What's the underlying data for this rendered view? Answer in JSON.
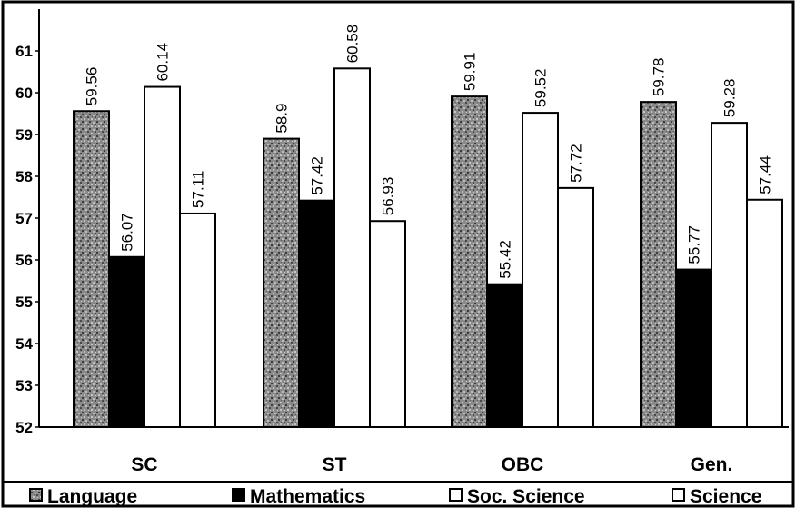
{
  "chart_data": {
    "type": "bar",
    "categories": [
      "SC",
      "ST",
      "OBC",
      "Gen."
    ],
    "series": [
      {
        "name": "Language",
        "values": [
          59.56,
          58.9,
          59.91,
          59.78
        ],
        "color": "#8a8a8a",
        "pattern": "speckled"
      },
      {
        "name": "Mathematics",
        "values": [
          56.07,
          57.42,
          55.42,
          55.77
        ],
        "color": "#000000",
        "pattern": "solid"
      },
      {
        "name": "Soc. Science",
        "values": [
          60.14,
          60.58,
          59.52,
          59.28
        ],
        "color": "#ffffff",
        "pattern": "none"
      },
      {
        "name": "Science",
        "values": [
          57.11,
          56.93,
          57.72,
          57.44
        ],
        "color": "#ffffff",
        "pattern": "none"
      }
    ],
    "y_ticks": [
      "52",
      "53",
      "54",
      "55",
      "56",
      "57",
      "58",
      "59",
      "60",
      "61"
    ],
    "data_labels": [
      [
        "59.56",
        "58.9",
        "59.91",
        "59.78"
      ],
      [
        "56.07",
        "57.42",
        "55.42",
        "55.77"
      ],
      [
        "60.14",
        "60.58",
        "59.52",
        "59.28"
      ],
      [
        "57.11",
        "56.93",
        "57.72",
        "57.44"
      ]
    ],
    "ylim": [
      52,
      61
    ],
    "grid": false,
    "legend_position": "bottom"
  }
}
